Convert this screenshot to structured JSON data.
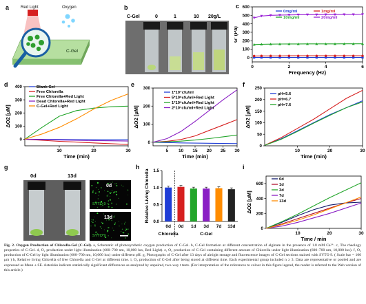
{
  "panels": {
    "a": {
      "label": "a",
      "red_light": "Red Light",
      "oxygen": "Oxygen",
      "gel": "C-Gel"
    },
    "b": {
      "label": "b",
      "header": "C-Gel",
      "concentrations": [
        "0",
        "1",
        "10",
        "20g/L"
      ]
    },
    "c": {
      "label": "c"
    },
    "d": {
      "label": "d"
    },
    "e": {
      "label": "e"
    },
    "f": {
      "label": "f"
    },
    "g": {
      "label": "g",
      "vial_days": [
        "0d",
        "13d"
      ],
      "micro_days": [
        "0d",
        "13d"
      ],
      "stain": "SYTO 9"
    },
    "h": {
      "label": "h"
    },
    "i": {
      "label": "i"
    }
  },
  "colors": {
    "blue": "#1f3dd6",
    "red": "#d62020",
    "green": "#22a52a",
    "purple": "#8a1fc4",
    "orange": "#ff8c00",
    "navy": "#111a6b",
    "darkred": "#b01030",
    "violet": "#9a22d6"
  },
  "chart_data": [
    {
      "id": "c",
      "type": "line",
      "xlabel": "Frequency (Hz)",
      "ylabel": "G' (Pa)",
      "xlim": [
        0,
        6
      ],
      "ylim": [
        -50,
        600
      ],
      "xticks": [
        0,
        2,
        4,
        6
      ],
      "yticks": [
        0,
        100,
        200,
        300,
        400,
        500,
        600
      ],
      "x": [
        0.1,
        0.5,
        1,
        1.5,
        2,
        2.5,
        3,
        3.5,
        4,
        4.5,
        5,
        5.5,
        6
      ],
      "series": [
        {
          "name": "0mg/ml",
          "color": "#1f3dd6",
          "marker": "square",
          "values": [
            2,
            2,
            2,
            2,
            2,
            2,
            2,
            2,
            2,
            2,
            2,
            2,
            2
          ]
        },
        {
          "name": "1mg/ml",
          "color": "#d62020",
          "marker": "circle",
          "values": [
            20,
            21,
            21,
            21,
            22,
            22,
            22,
            22,
            22,
            22,
            22,
            22,
            22
          ]
        },
        {
          "name": "10mg/ml",
          "color": "#22a52a",
          "marker": "triangle",
          "values": [
            155,
            158,
            160,
            161,
            162,
            162,
            163,
            163,
            163,
            163,
            164,
            164,
            164
          ]
        },
        {
          "name": "20mg/ml",
          "color": "#9a22d6",
          "marker": "triangle-down",
          "values": [
            470,
            492,
            500,
            503,
            505,
            507,
            508,
            508,
            509,
            509,
            510,
            510,
            511
          ]
        }
      ]
    },
    {
      "id": "d",
      "type": "line",
      "xlabel": "Time (min)",
      "ylabel": "ΔO2 [μM]",
      "xlim": [
        0,
        30
      ],
      "ylim": [
        -50,
        400
      ],
      "xticks": [
        10,
        20,
        30
      ],
      "yticks": [
        0,
        100,
        200,
        300,
        400
      ],
      "x": [
        0,
        5,
        10,
        15,
        20,
        25,
        30
      ],
      "series": [
        {
          "name": "Blank Gel",
          "color": "#1f3dd6",
          "values": [
            0,
            -1,
            -2,
            -3,
            -3,
            -4,
            -4
          ]
        },
        {
          "name": "Free Chlorella",
          "color": "#d62020",
          "values": [
            0,
            -8,
            -16,
            -22,
            -28,
            -34,
            -40
          ]
        },
        {
          "name": "Free Chlorella+Red Light",
          "color": "#22a52a",
          "values": [
            0,
            90,
            175,
            218,
            237,
            247,
            252
          ]
        },
        {
          "name": "Dead Chlorella+Red Light",
          "color": "#8a1fc4",
          "values": [
            0,
            -3,
            -6,
            -8,
            -10,
            -12,
            -14
          ]
        },
        {
          "name": "C-Gel+Red Light",
          "color": "#ff8c00",
          "values": [
            0,
            40,
            90,
            155,
            230,
            295,
            345
          ]
        }
      ]
    },
    {
      "id": "e",
      "type": "line",
      "xlabel": "Time (min)",
      "ylabel": "ΔO2 [μM]",
      "xlim": [
        0,
        30
      ],
      "ylim": [
        -20,
        300
      ],
      "xticks": [
        5,
        10,
        15,
        20,
        25,
        30
      ],
      "yticks": [
        0,
        100,
        200,
        300
      ],
      "x": [
        0,
        5,
        10,
        15,
        20,
        25,
        30
      ],
      "series": [
        {
          "name": "1*10⁴cfu/ml",
          "color": "#1f3dd6",
          "values": [
            0,
            -2,
            -4,
            -5,
            -6,
            -7,
            -8
          ]
        },
        {
          "name": "5*10⁸cfu/ml+Red Light",
          "color": "#d62020",
          "values": [
            0,
            5,
            15,
            35,
            65,
            95,
            125
          ]
        },
        {
          "name": "1*10⁸cfu/ml+Red Light",
          "color": "#22a52a",
          "values": [
            0,
            2,
            6,
            12,
            20,
            30,
            40
          ]
        },
        {
          "name": "2*10⁷cfu/ml+Red Light",
          "color": "#8a1fc4",
          "values": [
            0,
            20,
            60,
            115,
            175,
            235,
            290
          ]
        }
      ]
    },
    {
      "id": "f",
      "type": "line",
      "xlabel": "Time (min)",
      "ylabel": "ΔO2 [μM]",
      "xlim": [
        0,
        30
      ],
      "ylim": [
        0,
        250
      ],
      "xticks": [
        10,
        20,
        30
      ],
      "yticks": [
        0,
        50,
        100,
        150,
        200,
        250
      ],
      "x": [
        0,
        5,
        10,
        15,
        20,
        25,
        30
      ],
      "series": [
        {
          "name": "pH=5.6",
          "color": "#1f3dd6",
          "values": [
            2,
            30,
            65,
            100,
            135,
            165,
            195
          ]
        },
        {
          "name": "pH=6.7",
          "color": "#d62020",
          "values": [
            2,
            35,
            75,
            115,
            160,
            205,
            240
          ]
        },
        {
          "name": "pH=7.6",
          "color": "#22a52a",
          "values": [
            2,
            28,
            62,
            98,
            132,
            165,
            190
          ]
        }
      ]
    },
    {
      "id": "h",
      "type": "bar",
      "ylabel": "Relative Living Chlorella",
      "ylim": [
        0,
        1.5
      ],
      "yticks": [
        0,
        0.5,
        1.0,
        1.5
      ],
      "categories": [
        "0d",
        "0d",
        "1d",
        "3d",
        "7d",
        "13d"
      ],
      "groups": [
        {
          "name": "Chlorella",
          "span": [
            0,
            0
          ]
        },
        {
          "name": "C-Gel",
          "span": [
            1,
            5
          ]
        }
      ],
      "values": [
        1.0,
        1.02,
        0.97,
        0.97,
        0.98,
        0.95
      ],
      "colors": [
        "#1f3dd6",
        "#d62020",
        "#22a52a",
        "#8a1fc4",
        "#ff8c00",
        "#222222"
      ]
    },
    {
      "id": "i",
      "type": "line",
      "xlabel": "Time / min",
      "ylabel": "ΔO2 [μM]",
      "xlim": [
        0,
        30
      ],
      "ylim": [
        0,
        700
      ],
      "xticks": [
        10,
        20,
        30
      ],
      "yticks": [
        0,
        200,
        400,
        600
      ],
      "x": [
        0,
        5,
        10,
        15,
        20,
        25,
        30
      ],
      "series": [
        {
          "name": "0d",
          "color": "#111a6b",
          "values": [
            0,
            80,
            170,
            250,
            310,
            340,
            350
          ]
        },
        {
          "name": "1d",
          "color": "#b01030",
          "values": [
            0,
            60,
            130,
            200,
            270,
            340,
            400
          ]
        },
        {
          "name": "3d",
          "color": "#22a52a",
          "values": [
            0,
            90,
            190,
            300,
            410,
            510,
            610
          ]
        },
        {
          "name": "7d",
          "color": "#8a1fc4",
          "values": [
            0,
            30,
            80,
            140,
            200,
            270,
            340
          ]
        },
        {
          "name": "13d",
          "color": "#ff8c00",
          "values": [
            0,
            50,
            110,
            180,
            260,
            340,
            420
          ]
        }
      ]
    }
  ],
  "caption": {
    "lead": "Fig. 2. Oxygen Production of Chlorella-Gel (C-Gel).",
    "body": " a, Schematic of photosynthetic oxygen production of C-Gel. b, C-Gel formation at different concentration of alginate in the presence of 1.8 mM Ca²⁺. c, The rheology properties of C-Gel. d, O₂ production under light illumination (600–700 nm, 10,000 lux, Red Light). e, O₂ production of C-Gel containing different amount of Chlorella under light illumination (600–700 nm, 10,000 lux). f, O₂ production of C-Gel by light illumination (600–700 nm, 10,000 lux) under different pH. g, Photographs of C-Gel after 13 days of airtight storage and fluorescence images of C-Gel sections stained with SYTO 9. ( Scale bar = 100 μm ) h, Relative living Chlorella of free Chlorella and C-Gel at different time. i, O₂ production of C-Gel after being stored at different time. Each experimental group included n ≥ 3. Data are representative or pooled and are expressed as Mean ± SE. Asterisks indicate statistically significant differences as analyzed by unpaired, two-way t tests. (For interpretation of the references to colour in this figure legend, the reader is referred to the Web version of this article.)"
  }
}
